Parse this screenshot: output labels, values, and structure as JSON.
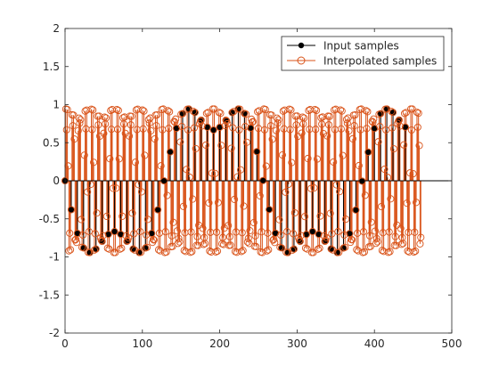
{
  "chart_data": {
    "type": "stem",
    "title": "",
    "xlabel": "",
    "ylabel": "",
    "xlim": [
      0,
      500
    ],
    "ylim": [
      -2,
      2
    ],
    "x_ticks": [
      0,
      100,
      200,
      300,
      400,
      500
    ],
    "y_ticks": [
      -2,
      -1.5,
      -1,
      -0.5,
      0,
      0.5,
      1,
      1.5,
      2
    ],
    "x_tick_labels": [
      "0",
      "100",
      "200",
      "300",
      "400",
      "500"
    ],
    "y_tick_labels": [
      "-2",
      "-1.5",
      "-1",
      "-0.5",
      "0",
      "0.5",
      "1",
      "1.5",
      "2"
    ],
    "grid": false,
    "legend_position": "top-right",
    "colors": {
      "input": "#000000",
      "interpolated": "#d95319"
    },
    "input_signal": {
      "period": 8.258,
      "num_samples": 56
    },
    "interpolated_signal": {
      "period": 8.258,
      "num_samples": 461
    },
    "series": [
      {
        "name": "Input samples",
        "marker": "filled-circle",
        "color": "#000000"
      },
      {
        "name": "Interpolated samples",
        "marker": "hollow-circle",
        "color": "#d95319"
      }
    ]
  }
}
